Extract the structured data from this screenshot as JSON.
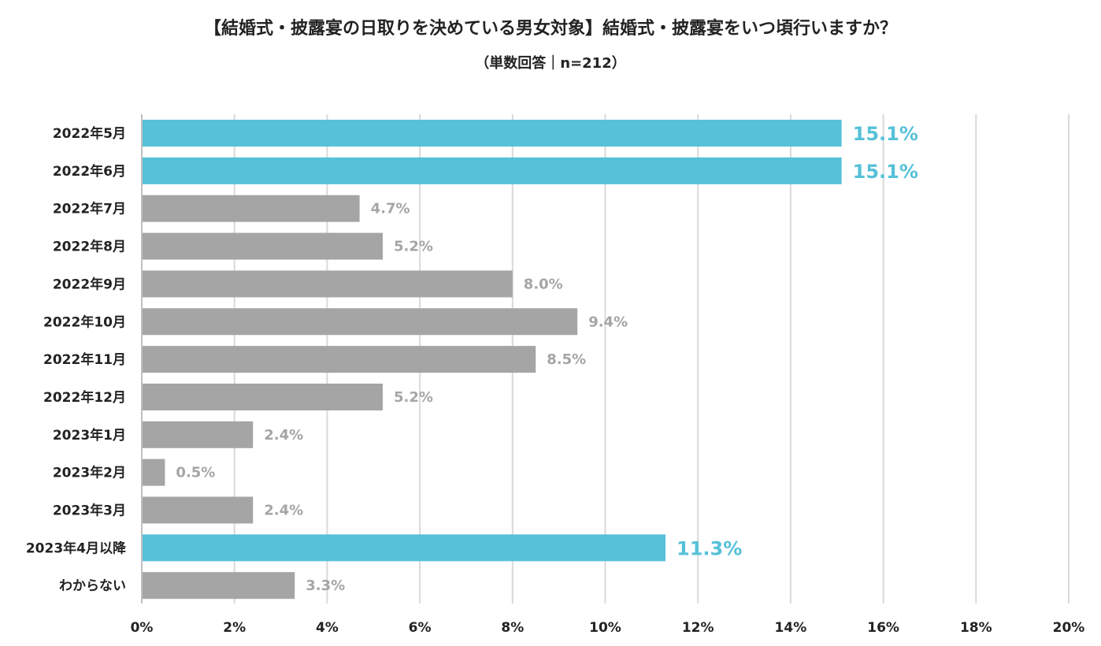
{
  "title": "【結婚式・披露宴の日取りを決めている男女対象】結婚式・披露宴をいつ頃行いますか？",
  "subtitle": "（単数回答｜n=212）",
  "chart_data": {
    "type": "bar",
    "orientation": "horizontal",
    "categories": [
      "2022年5月",
      "2022年6月",
      "2022年7月",
      "2022年8月",
      "2022年9月",
      "2022年10月",
      "2022年11月",
      "2022年12月",
      "2023年1月",
      "2023年2月",
      "2023年3月",
      "2023年4月以降",
      "わからない"
    ],
    "values": [
      15.1,
      15.1,
      4.7,
      5.2,
      8.0,
      9.4,
      8.5,
      5.2,
      2.4,
      0.5,
      2.4,
      11.3,
      3.3
    ],
    "value_labels": [
      "15.1%",
      "15.1%",
      "4.7%",
      "5.2%",
      "8.0%",
      "9.4%",
      "8.5%",
      "5.2%",
      "2.4%",
      "0.5%",
      "2.4%",
      "11.3%",
      "3.3%"
    ],
    "highlight": [
      true,
      true,
      false,
      false,
      false,
      false,
      false,
      false,
      false,
      false,
      false,
      true,
      false
    ],
    "xlim": [
      0,
      20
    ],
    "xticks": [
      "0%",
      "2%",
      "4%",
      "6%",
      "8%",
      "10%",
      "12%",
      "14%",
      "16%",
      "18%",
      "20%"
    ],
    "grid": true,
    "colors": {
      "highlight": "#56C1D8",
      "normal": "#A5A5A5",
      "grid": "#D9D9D9",
      "axis": "#BFBFBF"
    }
  }
}
